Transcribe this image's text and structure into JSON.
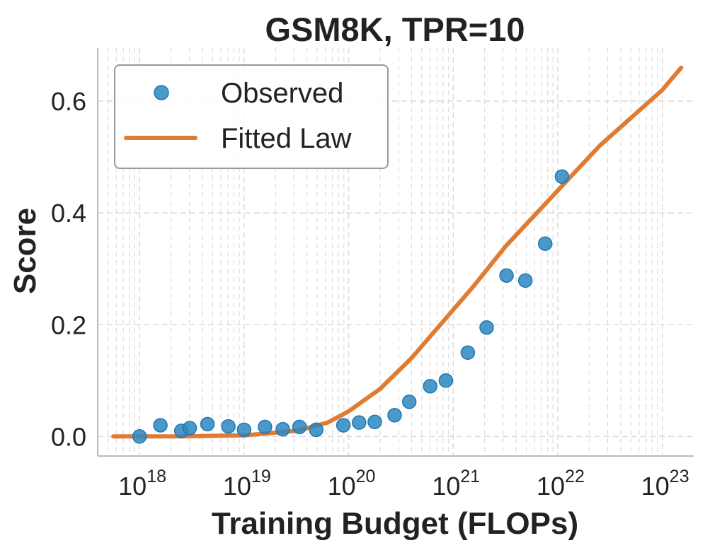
{
  "chart_data": {
    "type": "scatter",
    "title": "GSM8K, TPR=10",
    "xlabel": "Training Budget (FLOPs)",
    "ylabel": "Score",
    "xscale": "log",
    "xlim_log10": [
      17.6,
      23.3
    ],
    "ylim": [
      -0.035,
      0.695
    ],
    "x_major_ticks": [
      {
        "base": "10",
        "exp": "18",
        "log10": 18
      },
      {
        "base": "10",
        "exp": "19",
        "log10": 19
      },
      {
        "base": "10",
        "exp": "20",
        "log10": 20
      },
      {
        "base": "10",
        "exp": "21",
        "log10": 21
      },
      {
        "base": "10",
        "exp": "22",
        "log10": 22
      },
      {
        "base": "10",
        "exp": "23",
        "log10": 23
      }
    ],
    "y_ticks": [
      {
        "label": "0.0",
        "value": 0.0
      },
      {
        "label": "0.2",
        "value": 0.2
      },
      {
        "label": "0.4",
        "value": 0.4
      },
      {
        "label": "0.6",
        "value": 0.6
      }
    ],
    "grid": true,
    "legend": {
      "position": "top-left",
      "entries": [
        {
          "label": "Observed",
          "kind": "marker"
        },
        {
          "label": "Fitted Law",
          "kind": "line"
        }
      ]
    },
    "colors": {
      "observed": "#2b87bf",
      "observed_edge": "#1f77b4",
      "fitted": "#e07b32",
      "grid": "#dddddd",
      "axis": "#bbbbbb",
      "text": "#222222"
    },
    "series": [
      {
        "name": "Observed",
        "type": "scatter",
        "points": [
          {
            "log10x": 18.0,
            "y": 0.0
          },
          {
            "log10x": 18.2,
            "y": 0.02
          },
          {
            "log10x": 18.4,
            "y": 0.01
          },
          {
            "log10x": 18.48,
            "y": 0.015
          },
          {
            "log10x": 18.65,
            "y": 0.022
          },
          {
            "log10x": 18.85,
            "y": 0.018
          },
          {
            "log10x": 19.0,
            "y": 0.012
          },
          {
            "log10x": 19.2,
            "y": 0.017
          },
          {
            "log10x": 19.37,
            "y": 0.013
          },
          {
            "log10x": 19.53,
            "y": 0.017
          },
          {
            "log10x": 19.69,
            "y": 0.012
          },
          {
            "log10x": 19.95,
            "y": 0.02
          },
          {
            "log10x": 20.1,
            "y": 0.025
          },
          {
            "log10x": 20.25,
            "y": 0.026
          },
          {
            "log10x": 20.44,
            "y": 0.038
          },
          {
            "log10x": 20.58,
            "y": 0.062
          },
          {
            "log10x": 20.78,
            "y": 0.09
          },
          {
            "log10x": 20.93,
            "y": 0.1
          },
          {
            "log10x": 21.14,
            "y": 0.15
          },
          {
            "log10x": 21.32,
            "y": 0.195
          },
          {
            "log10x": 21.51,
            "y": 0.288
          },
          {
            "log10x": 21.69,
            "y": 0.279
          },
          {
            "log10x": 21.88,
            "y": 0.345
          },
          {
            "log10x": 22.04,
            "y": 0.465
          }
        ]
      },
      {
        "name": "Fitted Law",
        "type": "line",
        "points": [
          {
            "log10x": 17.75,
            "y": 0.0
          },
          {
            "log10x": 18.4,
            "y": 0.0
          },
          {
            "log10x": 19.0,
            "y": 0.002
          },
          {
            "log10x": 19.5,
            "y": 0.01
          },
          {
            "log10x": 19.8,
            "y": 0.025
          },
          {
            "log10x": 20.0,
            "y": 0.045
          },
          {
            "log10x": 20.3,
            "y": 0.085
          },
          {
            "log10x": 20.6,
            "y": 0.14
          },
          {
            "log10x": 20.9,
            "y": 0.205
          },
          {
            "log10x": 21.2,
            "y": 0.27
          },
          {
            "log10x": 21.5,
            "y": 0.34
          },
          {
            "log10x": 21.8,
            "y": 0.4
          },
          {
            "log10x": 22.1,
            "y": 0.46
          },
          {
            "log10x": 22.4,
            "y": 0.52
          },
          {
            "log10x": 22.7,
            "y": 0.57
          },
          {
            "log10x": 23.0,
            "y": 0.62
          },
          {
            "log10x": 23.18,
            "y": 0.66
          }
        ]
      }
    ]
  }
}
